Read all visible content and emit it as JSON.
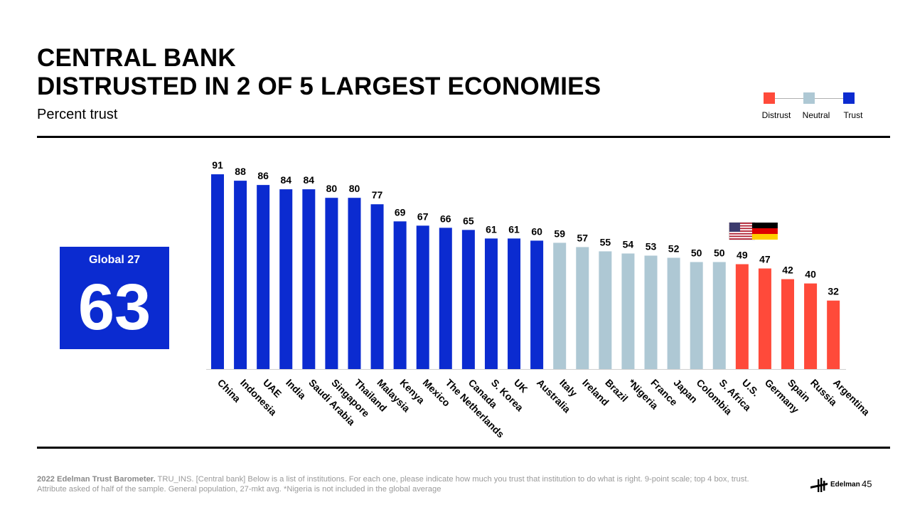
{
  "header": {
    "title_line1": "CENTRAL BANK",
    "title_line2": "DISTRUSTED IN 2 OF 5 LARGEST ECONOMIES",
    "subtitle": "Percent trust"
  },
  "legend": {
    "distrust": "Distrust",
    "neutral": "Neutral",
    "trust": "Trust"
  },
  "colors": {
    "trust": "#0b2bd0",
    "neutral": "#aec8d4",
    "distrust": "#ff4a3a"
  },
  "global": {
    "label": "Global 27",
    "value": "63"
  },
  "chart_data": {
    "type": "bar",
    "title": "CENTRAL BANK DISTRUSTED IN 2 OF 5 LARGEST ECONOMIES",
    "ylabel": "Percent trust",
    "ylim": [
      0,
      100
    ],
    "categories": [
      "China",
      "Indonesia",
      "UAE",
      "India",
      "Saudi Arabia",
      "Singapore",
      "Thailand",
      "Malaysia",
      "Kenya",
      "Mexico",
      "The Netherlands",
      "Canada",
      "S. Korea",
      "UK",
      "Australia",
      "Italy",
      "Ireland",
      "Brazil",
      "*Nigeria",
      "France",
      "Japan",
      "Colombia",
      "S. Africa",
      "U.S.",
      "Germany",
      "Spain",
      "Russia",
      "Argentina"
    ],
    "values": [
      91,
      88,
      86,
      84,
      84,
      80,
      80,
      77,
      69,
      67,
      66,
      65,
      61,
      61,
      60,
      59,
      57,
      55,
      54,
      53,
      52,
      50,
      50,
      49,
      47,
      42,
      40,
      32
    ],
    "levels": [
      "trust",
      "trust",
      "trust",
      "trust",
      "trust",
      "trust",
      "trust",
      "trust",
      "trust",
      "trust",
      "trust",
      "trust",
      "trust",
      "trust",
      "trust",
      "neutral",
      "neutral",
      "neutral",
      "neutral",
      "neutral",
      "neutral",
      "neutral",
      "neutral",
      "distrust",
      "distrust",
      "distrust",
      "distrust",
      "distrust"
    ],
    "flags": [
      {
        "country": "U.S.",
        "flag": "us-flag"
      },
      {
        "country": "Germany",
        "flag": "germany-flag"
      }
    ]
  },
  "footer": {
    "source_bold": "2022 Edelman Trust Barometer.",
    "source_text": " TRU_INS. [Central bank] Below is a list of institutions. For each one, please indicate how much you trust that institution to do what is right. 9-point scale; top 4 box, trust. Attribute asked of half of the sample. General population, 27-mkt avg. *Nigeria is not included in the global average",
    "brand": "Edelman",
    "page_number": "45"
  }
}
